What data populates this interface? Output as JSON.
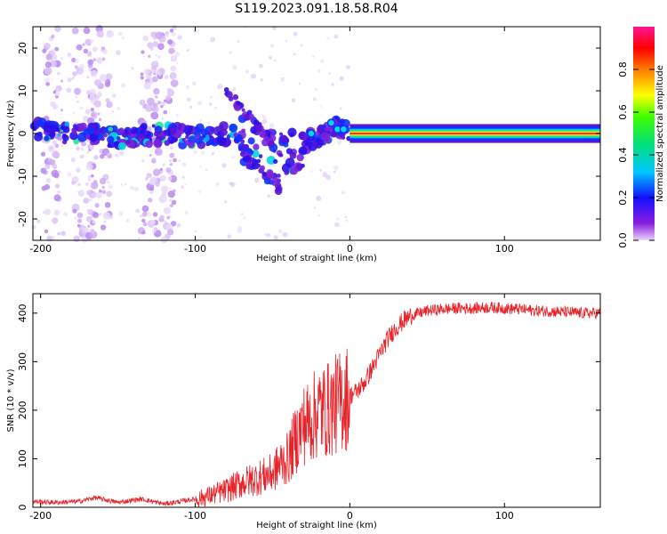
{
  "title": "S119.2023.091.18.58.R04",
  "colors": {
    "snr_line": "#e8232a",
    "spectrum_dots": "#b17cf0",
    "frame": "#000000"
  },
  "chart_data": [
    {
      "type": "heatmap",
      "xlabel": "Height of straight line (km)",
      "ylabel": "Frequency (Hz)",
      "xlim": [
        -205,
        162
      ],
      "ylim": [
        -25,
        25
      ],
      "x_ticks": [
        -200,
        -100,
        0,
        100
      ],
      "y_ticks": [
        -20,
        -10,
        0,
        10,
        20
      ],
      "colorbar": {
        "label": "Normalized spectral amplitude",
        "range": [
          0,
          1
        ],
        "ticks": [
          "0.0",
          "0.2",
          "0.4",
          "0.6",
          "0.8"
        ],
        "colormap": "rainbow (violet → blue → cyan → green → yellow → red → pink)"
      },
      "trace_center": {
        "x": [
          -205,
          -180,
          -150,
          -120,
          -100,
          -80,
          -60,
          -45,
          -30,
          -15,
          -10,
          0,
          50,
          100,
          162
        ],
        "y": [
          1,
          0,
          -1,
          0,
          -1,
          0,
          -3,
          -6,
          -2,
          0,
          2,
          0,
          0,
          0,
          0
        ]
      }
    },
    {
      "type": "line",
      "xlabel": "Height of straight line (km)",
      "ylabel": "SNR (10 * v/v)",
      "xlim": [
        -205,
        162
      ],
      "ylim": [
        0,
        440
      ],
      "x_ticks": [
        -200,
        -100,
        0,
        100
      ],
      "y_ticks": [
        0,
        100,
        200,
        300,
        400
      ],
      "series": [
        {
          "x": [
            -205,
            -190,
            -175,
            -165,
            -150,
            -135,
            -120,
            -110,
            -100,
            -90,
            -80,
            -70,
            -60,
            -50,
            -45,
            -40,
            -35,
            -30,
            -25,
            -20,
            -15,
            -10,
            -5,
            0,
            5,
            10,
            15,
            20,
            25,
            30,
            35,
            40,
            45,
            50,
            60,
            70,
            80,
            90,
            100,
            110,
            120,
            130,
            140,
            150,
            162
          ],
          "y": [
            10,
            8,
            10,
            18,
            8,
            15,
            5,
            10,
            15,
            25,
            35,
            50,
            60,
            70,
            90,
            100,
            140,
            170,
            180,
            200,
            200,
            210,
            220,
            230,
            240,
            260,
            290,
            320,
            350,
            370,
            385,
            395,
            400,
            405,
            408,
            410,
            410,
            412,
            410,
            408,
            405,
            404,
            402,
            400,
            400
          ]
        }
      ]
    }
  ]
}
